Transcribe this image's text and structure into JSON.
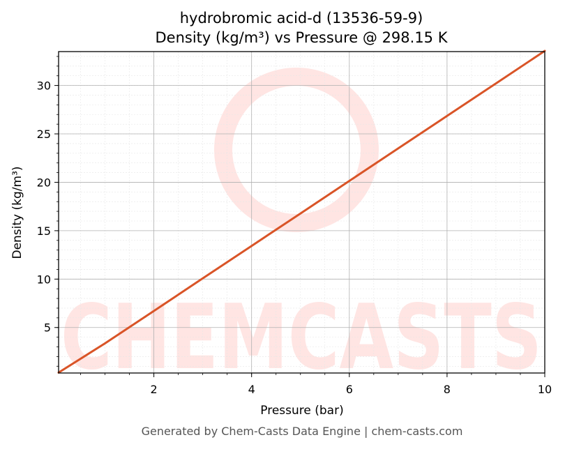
{
  "chart_data": {
    "type": "line",
    "title_line1": "hydrobromic acid-d (13536-59-9)",
    "title_line2": "Density (kg/m³) vs Pressure @ 298.15 K",
    "xlabel": "Pressure (bar)",
    "ylabel": "Density (kg/m³)",
    "xlim": [
      0.05,
      10
    ],
    "ylim": [
      0.3,
      33.5
    ],
    "xticks": [
      2,
      4,
      6,
      8,
      10
    ],
    "yticks": [
      5,
      10,
      15,
      20,
      25,
      30
    ],
    "grid": true,
    "series": [
      {
        "color": "#d95427",
        "x": [
          0.05,
          1,
          2,
          3,
          4,
          5,
          6,
          7,
          8,
          9,
          10
        ],
        "y": [
          0.34,
          3.36,
          6.71,
          10.07,
          13.43,
          16.78,
          20.14,
          23.5,
          26.85,
          30.21,
          33.57
        ]
      }
    ]
  },
  "watermark": {
    "text": "CHEMCASTS",
    "color": "#ffe5e3"
  },
  "footer": "Generated by Chem-Casts Data Engine | chem-casts.com"
}
